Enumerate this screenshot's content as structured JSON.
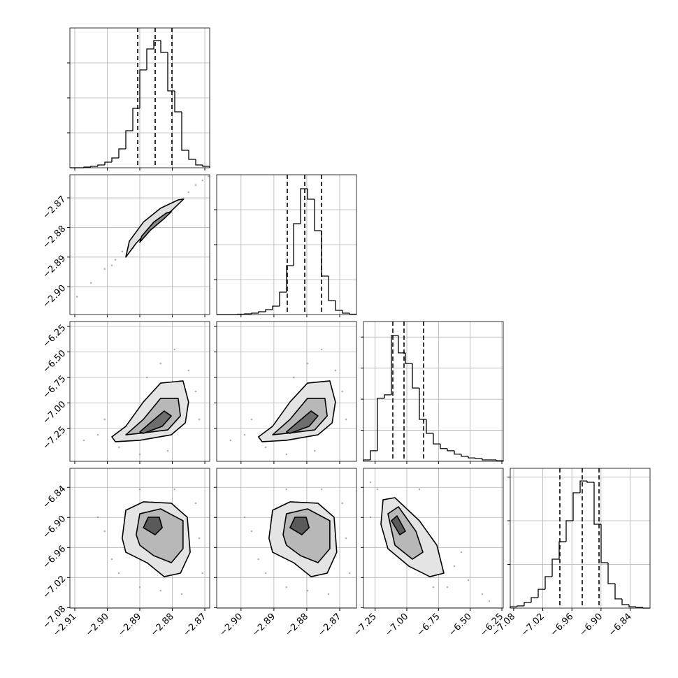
{
  "chart_data": [
    {
      "type": "histogram",
      "xlim": [
        -2.9115,
        -2.8685
      ],
      "xticks": [
        -2.91,
        -2.9,
        -2.89,
        -2.88,
        -2.87
      ],
      "ylim": [
        0,
        2000
      ],
      "yticks": [
        500,
        1000,
        1500
      ],
      "grid": true,
      "color": "#000000",
      "bins": [
        -2.9115,
        -2.90935,
        -2.9072,
        -2.90505,
        -2.9029,
        -2.90075,
        -2.8986,
        -2.89645,
        -2.8943,
        -2.89215,
        -2.89,
        -2.88785,
        -2.8857,
        -2.88355,
        -2.8814,
        -2.87925,
        -2.8771,
        -2.87495,
        -2.8728,
        -2.87065,
        -2.8685
      ],
      "values": [
        0,
        0,
        10,
        20,
        40,
        80,
        140,
        270,
        530,
        850,
        1400,
        1700,
        1820,
        1650,
        1100,
        800,
        250,
        120,
        40,
        20
      ],
      "quantiles": [
        -2.89064,
        -2.88527,
        -2.88011
      ]
    },
    {
      "type": "density",
      "xlim": [
        -2.9115,
        -2.8685
      ],
      "xticks": [
        -2.91,
        -2.9,
        -2.89,
        -2.88,
        -2.87
      ],
      "ylim": [
        -2.9094,
        -2.8622
      ],
      "yticks": [
        {
          "value": -2.9,
          "label": "−2.90"
        },
        {
          "value": -2.89,
          "label": "−2.89"
        },
        {
          "value": -2.88,
          "label": "−2.88"
        },
        {
          "value": -2.87,
          "label": "−2.87"
        }
      ],
      "grid": true,
      "color": "#808080",
      "points": {
        "x": [
          -2.9093,
          -2.905,
          -2.9008,
          -2.8975,
          -2.8954,
          -2.875,
          -2.8728,
          -2.8707,
          -2.8689,
          -2.8986,
          -2.8921
        ],
        "y": [
          -2.9034,
          -2.8987,
          -2.894,
          -2.8909,
          -2.8881,
          -2.8681,
          -2.8657,
          -2.8641,
          -2.8627,
          -2.8928,
          -2.8869
        ]
      },
      "contours": [
        {
          "color": "#e0e0e0",
          "x": [
            -2.8943,
            -2.8911,
            -2.8857,
            -2.8803,
            -2.8765,
            -2.8782,
            -2.8836,
            -2.8889,
            -2.8932
          ],
          "y": [
            -2.89,
            -2.8853,
            -2.8791,
            -2.8744,
            -2.8704,
            -2.8707,
            -2.8735,
            -2.8782,
            -2.8846
          ]
        },
        {
          "color": "#8a8a8a",
          "x": [
            -2.89,
            -2.8868,
            -2.8825,
            -2.8803,
            -2.8818,
            -2.8857,
            -2.8894
          ],
          "y": [
            -2.885,
            -2.881,
            -2.877,
            -2.8747,
            -2.8751,
            -2.8782,
            -2.8829
          ]
        }
      ]
    },
    {
      "type": "histogram",
      "xlim": [
        -2.9074,
        -2.8649
      ],
      "xticks": [
        -2.9,
        -2.89,
        -2.88,
        -2.87
      ],
      "ylim": [
        0,
        2000
      ],
      "yticks": [
        500,
        1000,
        1500
      ],
      "grid": true,
      "color": "#000000",
      "bins": [
        -2.9074,
        -2.905275,
        -2.90315,
        -2.901025,
        -2.8989,
        -2.896775,
        -2.89465,
        -2.892525,
        -2.8904,
        -2.888275,
        -2.88615,
        -2.884025,
        -2.8819,
        -2.879775,
        -2.87765,
        -2.875525,
        -2.8734,
        -2.871275,
        -2.86915,
        -2.867025,
        -2.8649
      ],
      "values": [
        0,
        0,
        0,
        5,
        10,
        20,
        40,
        70,
        120,
        320,
        700,
        1300,
        1800,
        1650,
        1200,
        550,
        200,
        60,
        20,
        5
      ],
      "quantiles": [
        -2.88594,
        -2.88063,
        -2.87553
      ]
    },
    {
      "type": "density",
      "xlim": [
        -2.9115,
        -2.8685
      ],
      "xticks": [
        -2.91,
        -2.9,
        -2.89,
        -2.88,
        -2.87
      ],
      "ylim": [
        -7.572,
        -6.202
      ],
      "yticks": [
        {
          "value": -7.25,
          "label": "−7.25"
        },
        {
          "value": -7,
          "label": "−7.00"
        },
        {
          "value": -6.75,
          "label": "−6.75"
        },
        {
          "value": -6.5,
          "label": "−6.50"
        },
        {
          "value": -6.25,
          "label": "−6.25"
        }
      ],
      "grid": true,
      "color": "#808080",
      "points": {
        "x": [
          -2.9029,
          -2.9008,
          -2.8964,
          -2.89,
          -2.8836,
          -2.8793,
          -2.875,
          -2.8728,
          -2.8814,
          -2.9072,
          -2.8878,
          -2.8717
        ],
        "y": [
          -7.312,
          -7.161,
          -7.435,
          -7.503,
          -6.613,
          -6.476,
          -6.681,
          -6.887,
          -7.469,
          -7.366,
          -6.75,
          -7.161
        ]
      },
      "contours": [
        {
          "color": "#e4e4e4",
          "x": [
            -2.8986,
            -2.8943,
            -2.8889,
            -2.8836,
            -2.8767,
            -2.875,
            -2.876,
            -2.8803,
            -2.89,
            -2.8975
          ],
          "y": [
            -7.332,
            -7.229,
            -6.99,
            -6.805,
            -6.784,
            -6.99,
            -7.195,
            -7.312,
            -7.366,
            -7.38
          ]
        },
        {
          "color": "#b8b8b8",
          "x": [
            -2.8943,
            -2.8889,
            -2.8836,
            -2.8782,
            -2.8775,
            -2.8814,
            -2.89
          ],
          "y": [
            -7.312,
            -7.161,
            -6.955,
            -6.955,
            -7.127,
            -7.264,
            -7.298
          ]
        },
        {
          "color": "#6e6e6e",
          "x": [
            -2.89,
            -2.8868,
            -2.8825,
            -2.8803,
            -2.8831,
            -2.8889
          ],
          "y": [
            -7.284,
            -7.195,
            -7.079,
            -7.127,
            -7.229,
            -7.298
          ]
        }
      ]
    },
    {
      "type": "density",
      "xlim": [
        -2.9074,
        -2.8649
      ],
      "xticks": [
        -2.9,
        -2.89,
        -2.88,
        -2.87
      ],
      "ylim": [
        -7.572,
        -6.202
      ],
      "yticks": [
        -7.25,
        -7,
        -6.75,
        -6.5,
        -6.25
      ],
      "grid": true,
      "color": "#808080",
      "points": {
        "x": [
          -2.8989,
          -2.8968,
          -2.8925,
          -2.8862,
          -2.8798,
          -2.8755,
          -2.8713,
          -2.8692,
          -2.8776,
          -2.9032,
          -2.884,
          -2.8681
        ],
        "y": [
          -7.312,
          -7.161,
          -7.435,
          -7.503,
          -6.613,
          -6.476,
          -6.681,
          -6.887,
          -7.469,
          -7.366,
          -6.75,
          -7.161
        ]
      },
      "contours": [
        {
          "color": "#e4e4e4",
          "x": [
            -2.8947,
            -2.8904,
            -2.8851,
            -2.8798,
            -2.873,
            -2.8713,
            -2.8723,
            -2.8766,
            -2.8862,
            -2.8936
          ],
          "y": [
            -7.332,
            -7.229,
            -6.99,
            -6.805,
            -6.784,
            -6.99,
            -7.195,
            -7.312,
            -7.366,
            -7.38
          ]
        },
        {
          "color": "#b8b8b8",
          "x": [
            -2.8904,
            -2.8851,
            -2.8798,
            -2.8745,
            -2.8738,
            -2.8776,
            -2.8862
          ],
          "y": [
            -7.312,
            -7.161,
            -6.955,
            -6.955,
            -7.127,
            -7.264,
            -7.298
          ]
        },
        {
          "color": "#6e6e6e",
          "x": [
            -2.8862,
            -2.883,
            -2.8787,
            -2.8766,
            -2.8793,
            -2.8851
          ],
          "y": [
            -7.284,
            -7.195,
            -7.079,
            -7.127,
            -7.229,
            -7.298
          ]
        }
      ]
    },
    {
      "type": "histogram",
      "xlim": [
        -7.342,
        -6.239
      ],
      "xticks": [
        -7.25,
        -7,
        -6.75,
        -6.5,
        -6.25
      ],
      "ylim": [
        0,
        4500
      ],
      "yticks": [
        1000,
        2000,
        3000,
        4000
      ],
      "grid": true,
      "color": "#000000",
      "bins": [
        -7.342,
        -7.28685,
        -7.2317,
        -7.17655,
        -7.1214,
        -7.06625,
        -7.0111,
        -6.95595,
        -6.9008,
        -6.84565,
        -6.7905,
        -6.73535,
        -6.6802,
        -6.62505,
        -6.5699,
        -6.51475,
        -6.4596,
        -6.40445,
        -6.3493,
        -6.29415,
        -6.239
      ],
      "values": [
        45,
        340,
        2030,
        2140,
        4050,
        3490,
        3150,
        2360,
        1350,
        900,
        560,
        410,
        340,
        230,
        160,
        110,
        90,
        45,
        45,
        20
      ],
      "quantiles": [
        -7.1103,
        -7.022,
        -6.8677
      ]
    },
    {
      "type": "density",
      "xlim": [
        -2.9115,
        -2.8685
      ],
      "xticks": [
        {
          "value": -2.91,
          "label": "−2.91"
        },
        {
          "value": -2.9,
          "label": "−2.90"
        },
        {
          "value": -2.89,
          "label": "−2.89"
        },
        {
          "value": -2.88,
          "label": "−2.88"
        },
        {
          "value": -2.87,
          "label": "−2.87"
        }
      ],
      "ylim": [
        -7.0809,
        -6.802
      ],
      "yticks": [
        {
          "value": -7.08,
          "label": "−7.08"
        },
        {
          "value": -7.02,
          "label": "−7.02"
        },
        {
          "value": -6.96,
          "label": "−6.96"
        },
        {
          "value": -6.9,
          "label": "−6.90"
        },
        {
          "value": -6.84,
          "label": "−6.84"
        }
      ],
      "grid": true,
      "color": "#808080",
      "points": {
        "x": [
          -2.9008,
          -2.8986,
          -2.89,
          -2.8793,
          -2.8717,
          -2.8707,
          -2.8836,
          -2.89,
          -2.9029,
          -2.8728,
          -2.8771,
          -2.8964
        ],
        "y": [
          -6.9275,
          -6.9833,
          -6.8438,
          -6.8438,
          -6.9415,
          -7.0112,
          -7.0461,
          -7.0391,
          -6.8996,
          -6.8717,
          -7.053,
          -7.0112
        ]
      },
      "contours": [
        {
          "color": "#e4e4e4",
          "x": [
            -2.8954,
            -2.8943,
            -2.8889,
            -2.8803,
            -2.8754,
            -2.8745,
            -2.8775,
            -2.8825,
            -2.8878,
            -2.8943
          ],
          "y": [
            -6.9415,
            -6.8857,
            -6.8689,
            -6.8717,
            -6.8996,
            -6.9694,
            -7.0112,
            -7.0182,
            -6.9903,
            -6.9694
          ]
        },
        {
          "color": "#b8b8b8",
          "x": [
            -2.8911,
            -2.89,
            -2.8836,
            -2.8767,
            -2.8767,
            -2.8803,
            -2.8857,
            -2.89
          ],
          "y": [
            -6.9345,
            -6.8927,
            -6.8829,
            -6.9066,
            -6.9624,
            -6.9903,
            -6.9763,
            -6.9554
          ]
        },
        {
          "color": "#5a5a5a",
          "x": [
            -2.8889,
            -2.8874,
            -2.884,
            -2.8831,
            -2.8853
          ],
          "y": [
            -6.9205,
            -6.8996,
            -6.8996,
            -6.9205,
            -6.9345
          ]
        }
      ]
    },
    {
      "type": "density",
      "xlim": [
        -2.9074,
        -2.8649
      ],
      "xticks": [
        {
          "value": -2.9,
          "label": "−2.90"
        },
        {
          "value": -2.89,
          "label": "−2.89"
        },
        {
          "value": -2.88,
          "label": "−2.88"
        },
        {
          "value": -2.87,
          "label": "−2.87"
        }
      ],
      "ylim": [
        -7.0809,
        -6.802
      ],
      "yticks": [
        -7.08,
        -7.02,
        -6.96,
        -6.9,
        -6.84
      ],
      "grid": true,
      "color": "#808080",
      "points": {
        "x": [
          -2.8968,
          -2.8947,
          -2.8862,
          -2.8755,
          -2.8681,
          -2.867,
          -2.8798,
          -2.8862,
          -2.8989,
          -2.8692,
          -2.8734,
          -2.8925
        ],
        "y": [
          -6.9275,
          -6.9833,
          -6.8438,
          -6.8438,
          -6.9415,
          -7.0112,
          -7.0461,
          -7.0391,
          -6.8996,
          -6.8717,
          -7.053,
          -7.0112
        ]
      },
      "contours": [
        {
          "color": "#e4e4e4",
          "x": [
            -2.8915,
            -2.8904,
            -2.8851,
            -2.8766,
            -2.8717,
            -2.8709,
            -2.8738,
            -2.8787,
            -2.884,
            -2.8904
          ],
          "y": [
            -6.9415,
            -6.8857,
            -6.8689,
            -6.8717,
            -6.8996,
            -6.9694,
            -7.0112,
            -7.0182,
            -6.9903,
            -6.9694
          ]
        },
        {
          "color": "#b8b8b8",
          "x": [
            -2.8872,
            -2.8862,
            -2.8798,
            -2.873,
            -2.873,
            -2.8766,
            -2.8819,
            -2.8862
          ],
          "y": [
            -6.9345,
            -6.8927,
            -6.8829,
            -6.9066,
            -6.9624,
            -6.9903,
            -6.9763,
            -6.9554
          ]
        },
        {
          "color": "#5a5a5a",
          "x": [
            -2.8851,
            -2.8836,
            -2.8802,
            -2.8793,
            -2.8815
          ],
          "y": [
            -6.9205,
            -6.8996,
            -6.8996,
            -6.9205,
            -6.9345
          ]
        }
      ]
    },
    {
      "type": "density",
      "xlim": [
        -7.342,
        -6.239
      ],
      "xticks": [
        {
          "value": -7.25,
          "label": "−7.25"
        },
        {
          "value": -7,
          "label": "−7.00"
        },
        {
          "value": -6.75,
          "label": "−6.75"
        },
        {
          "value": -6.5,
          "label": "−6.50"
        },
        {
          "value": -6.25,
          "label": "−6.25"
        }
      ],
      "ylim": [
        -7.0809,
        -6.802
      ],
      "yticks": [
        -7.08,
        -7.02,
        -6.96,
        -6.9,
        -6.84
      ],
      "grid": true,
      "color": "#808080",
      "points": {
        "x": [
          -7.2868,
          -7.2317,
          -6.625,
          -6.5146,
          -6.4043,
          -6.3492,
          -6.5698,
          -6.7904,
          -7.2868,
          -6.9007,
          -6.6801
        ],
        "y": [
          -6.8299,
          -6.8438,
          -6.9973,
          -7.0252,
          -7.053,
          -7.067,
          -6.9694,
          -7.0391,
          -6.8996,
          -6.8438,
          -7.0391
        ]
      },
      "contours": [
        {
          "color": "#e4e4e4",
          "x": [
            -7.1876,
            -7.0938,
            -6.9007,
            -6.7629,
            -6.7077,
            -6.818,
            -6.9835,
            -7.149,
            -7.2041
          ],
          "y": [
            -6.8648,
            -6.8606,
            -6.9066,
            -6.9554,
            -7.0112,
            -7.0182,
            -6.9973,
            -6.9624,
            -6.9136
          ]
        },
        {
          "color": "#b8b8b8",
          "x": [
            -7.149,
            -7.0662,
            -6.9283,
            -6.8732,
            -6.9559,
            -7.0938
          ],
          "y": [
            -6.8927,
            -6.8787,
            -6.9275,
            -6.9694,
            -6.9833,
            -6.9554
          ]
        },
        {
          "color": "#5a5a5a",
          "x": [
            -7.1214,
            -7.0773,
            -7.0111,
            -7.0552
          ],
          "y": [
            -6.9066,
            -6.8969,
            -6.9275,
            -6.9345
          ]
        }
      ]
    },
    {
      "type": "histogram",
      "xlim": [
        -7.087,
        -6.799
      ],
      "xticks": [
        {
          "value": -7.08,
          "label": "−7.08"
        },
        {
          "value": -7.02,
          "label": "−7.02"
        },
        {
          "value": -6.96,
          "label": "−6.96"
        },
        {
          "value": -6.9,
          "label": "−6.90"
        },
        {
          "value": -6.84,
          "label": "−6.84"
        }
      ],
      "ylim": [
        0,
        3200
      ],
      "yticks": [
        1000,
        2000,
        3000
      ],
      "grid": true,
      "color": "#000000",
      "bins": [
        -7.087,
        -7.0726,
        -7.0582,
        -7.0438,
        -7.0294,
        -7.015,
        -7.0006,
        -6.9862,
        -6.9718,
        -6.9574,
        -6.943,
        -6.9286,
        -6.9142,
        -6.8998,
        -6.8854,
        -6.871,
        -6.8566,
        -6.8422,
        -6.8278,
        -6.8134,
        -6.799
      ],
      "values": [
        30,
        50,
        130,
        240,
        430,
        720,
        1120,
        1520,
        2000,
        2640,
        2910,
        2880,
        1920,
        1040,
        560,
        210,
        80,
        30,
        15,
        0
      ],
      "quantiles": [
        -6.9848,
        -6.9387,
        -6.9041
      ]
    }
  ]
}
